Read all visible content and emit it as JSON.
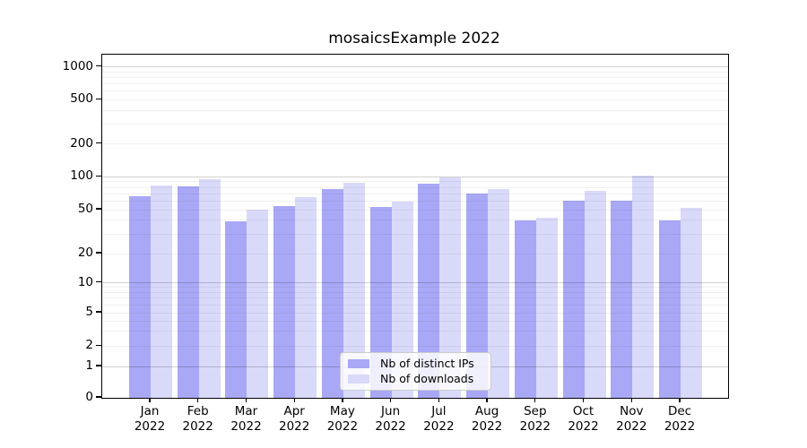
{
  "title": "mosaicsExample 2022",
  "chart_data": {
    "type": "bar",
    "title": "mosaicsExample 2022",
    "x_tick_line1": [
      "Jan",
      "Feb",
      "Mar",
      "Apr",
      "May",
      "Jun",
      "Jul",
      "Aug",
      "Sep",
      "Oct",
      "Nov",
      "Dec"
    ],
    "x_tick_line2": "2022",
    "series": [
      {
        "name": "Nb of distinct IPs",
        "color": "#a8a8f6",
        "values": [
          67,
          82,
          39,
          54,
          78,
          53,
          86,
          70,
          40,
          60,
          60,
          40
        ]
      },
      {
        "name": "Nb of downloads",
        "color": "#d9d9fa",
        "values": [
          84,
          95,
          50,
          65,
          89,
          59,
          99,
          78,
          42,
          75,
          102,
          52
        ]
      }
    ],
    "yscale": "symlog",
    "ylim": [
      0,
      1300
    ],
    "y_ticks": [
      0,
      1,
      2,
      5,
      10,
      20,
      50,
      100,
      200,
      500,
      1000
    ],
    "y_anchors": [
      [
        0,
        0
      ],
      [
        1,
        0.0914
      ],
      [
        2,
        0.1507
      ],
      [
        5,
        0.248
      ],
      [
        10,
        0.3352
      ],
      [
        20,
        0.4204
      ],
      [
        50,
        0.5483
      ],
      [
        100,
        0.6441
      ],
      [
        200,
        0.74
      ],
      [
        500,
        0.8687
      ],
      [
        1000,
        0.9645
      ]
    ],
    "grid": true,
    "grid_major_values": [
      1,
      10,
      100,
      1000
    ],
    "grid_minor_values": [
      2,
      3,
      4,
      5,
      6,
      7,
      8,
      9,
      20,
      30,
      40,
      50,
      60,
      70,
      80,
      90,
      200,
      300,
      400,
      500,
      600,
      700,
      800,
      900
    ],
    "legend_position": "lower center"
  },
  "colors": {
    "grid_major": "rgba(0,0,0,0.18)",
    "grid_minor": "rgba(0,0,0,0.06)",
    "axis": "#000000",
    "legend_border": "#cccccc"
  }
}
